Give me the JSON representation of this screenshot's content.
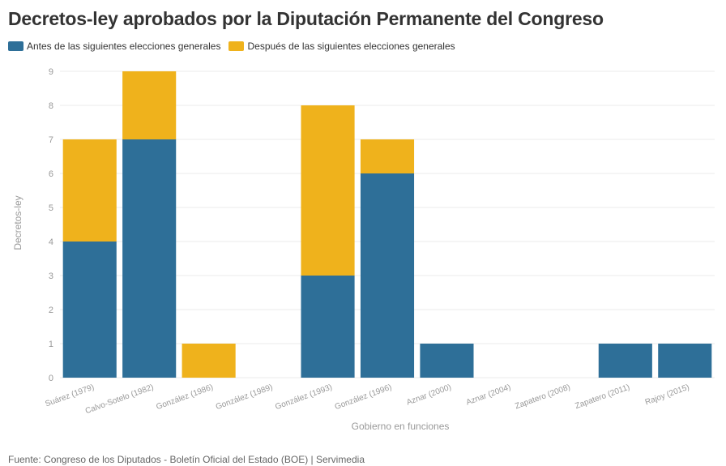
{
  "title": "Decretos-ley aprobados por la Diputación Permanente del Congreso",
  "source": "Fuente: Congreso de los Diputados - Boletín Oficial del Estado (BOE) | Servimedia",
  "colors": {
    "before": "#2e6f98",
    "after": "#efb21c",
    "grid": "#ebebeb",
    "text": "#999999"
  },
  "chart_data": {
    "type": "bar",
    "stacked": true,
    "title": "Decretos-ley aprobados por la Diputación Permanente del Congreso",
    "xlabel": "Gobierno en funciones",
    "ylabel": "Decretos-ley",
    "ylim": [
      0,
      9
    ],
    "yticks": [
      0,
      1,
      2,
      3,
      4,
      5,
      6,
      7,
      8,
      9
    ],
    "grid": true,
    "legend_position": "top-left",
    "categories": [
      "Suárez (1979)",
      "Calvo-Sotelo (1982)",
      "González (1986)",
      "González (1989)",
      "González (1993)",
      "González (1996)",
      "Aznar (2000)",
      "Aznar (2004)",
      "Zapatero (2008)",
      "Zapatero (2011)",
      "Rajoy (2015)"
    ],
    "series": [
      {
        "name": "Antes de las siguientes elecciones generales",
        "color": "#2e6f98",
        "values": [
          4,
          7,
          0,
          0,
          3,
          6,
          1,
          0,
          0,
          1,
          1
        ]
      },
      {
        "name": "Después de las siguientes elecciones generales",
        "color": "#efb21c",
        "values": [
          3,
          2,
          1,
          0,
          5,
          1,
          0,
          0,
          0,
          0,
          0
        ]
      }
    ]
  }
}
